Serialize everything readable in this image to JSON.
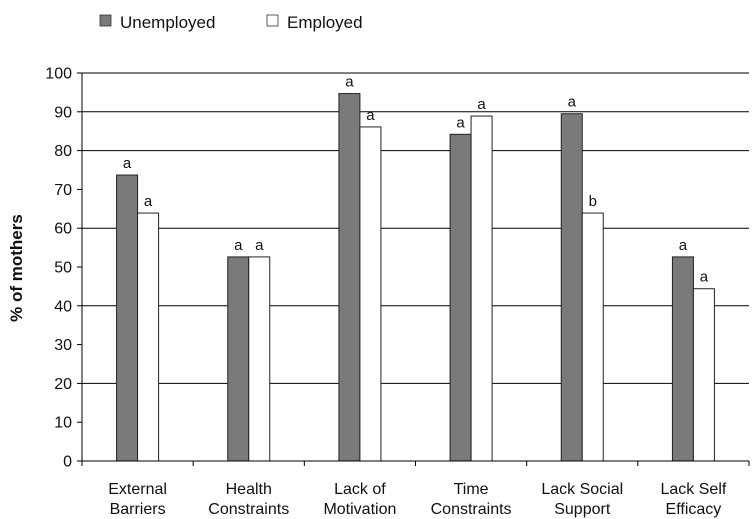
{
  "chart_data": {
    "type": "bar",
    "title": "",
    "xlabel": "",
    "ylabel": "% of mothers",
    "ylim": [
      0,
      100
    ],
    "yticks": [
      0,
      10,
      20,
      30,
      40,
      50,
      60,
      70,
      80,
      90,
      100
    ],
    "grid": "horizontal at 20, 40, 60, 80, 90, 100",
    "legend_position": "top-left",
    "categories": [
      [
        "External",
        "Barriers"
      ],
      [
        "Health",
        "Constraints"
      ],
      [
        "Lack of",
        "Motivation"
      ],
      [
        "Time",
        "Constraints"
      ],
      [
        "Lack Social",
        "Support"
      ],
      [
        "Lack Self",
        "Efficacy"
      ]
    ],
    "series": [
      {
        "name": "Unemployed",
        "color": "#7a7a7a",
        "values": [
          73.7,
          52.6,
          94.7,
          84.2,
          89.5,
          52.6
        ],
        "labels": [
          "a",
          "a",
          "a",
          "a",
          "a",
          "a"
        ]
      },
      {
        "name": "Employed",
        "color": "#ffffff",
        "values": [
          63.9,
          52.6,
          86.1,
          88.9,
          63.9,
          44.4
        ],
        "labels": [
          "a",
          "a",
          "a",
          "a",
          "b",
          "a"
        ]
      }
    ]
  }
}
